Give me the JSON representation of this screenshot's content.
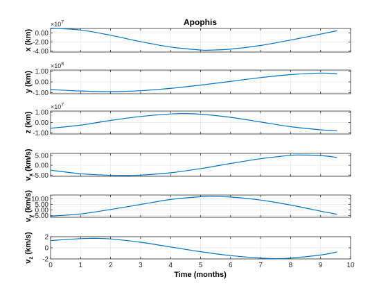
{
  "chart_data": {
    "type": "line",
    "title": "Apophis",
    "xlabel": "Time (months)",
    "xlim": [
      0,
      10
    ],
    "xticks": [
      "0",
      "1",
      "2",
      "3",
      "4",
      "5",
      "6",
      "7",
      "8",
      "9",
      "10"
    ],
    "x_end": 9.55,
    "line_color": "#0072BD",
    "grid_color": "#e6e6e6",
    "panels": [
      {
        "ylabel": "x (km)",
        "exponent_base": "×10",
        "exponent_power": "7",
        "ylim": [
          -4.2,
          1.0
        ],
        "yticks": [
          {
            "value": 0,
            "label": "0.00"
          },
          {
            "value": -2,
            "label": "-2.00"
          },
          {
            "value": -4,
            "label": "-4.00"
          }
        ],
        "points": [
          [
            0,
            1.08
          ],
          [
            1,
            0.65
          ],
          [
            2,
            -0.5
          ],
          [
            3,
            -1.9
          ],
          [
            4,
            -3.1
          ],
          [
            5,
            -3.75
          ],
          [
            5.3,
            -3.78
          ],
          [
            6,
            -3.55
          ],
          [
            7,
            -2.75
          ],
          [
            8,
            -1.55
          ],
          [
            9,
            -0.25
          ],
          [
            9.55,
            0.5
          ]
        ]
      },
      {
        "ylabel": "y (km)",
        "exponent_base": "×10",
        "exponent_power": "8",
        "ylim": [
          -1.1,
          1.1
        ],
        "yticks": [
          {
            "value": 1,
            "label": "1.00"
          },
          {
            "value": 0,
            "label": "0.00"
          },
          {
            "value": -1,
            "label": "-1.00"
          }
        ],
        "points": [
          [
            0,
            -0.72
          ],
          [
            1,
            -0.85
          ],
          [
            2,
            -0.9
          ],
          [
            3,
            -0.82
          ],
          [
            4,
            -0.6
          ],
          [
            5,
            -0.3
          ],
          [
            6,
            0.05
          ],
          [
            7,
            0.4
          ],
          [
            8,
            0.68
          ],
          [
            9,
            0.82
          ],
          [
            9.55,
            0.77
          ]
        ]
      },
      {
        "ylabel": "z (km)",
        "exponent_base": "×10",
        "exponent_power": "7",
        "ylim": [
          -1.1,
          1.1
        ],
        "yticks": [
          {
            "value": 1,
            "label": "1.00"
          },
          {
            "value": 0,
            "label": "0.00"
          },
          {
            "value": -1,
            "label": "-1.00"
          }
        ],
        "points": [
          [
            0,
            -0.55
          ],
          [
            1,
            -0.25
          ],
          [
            2,
            0.2
          ],
          [
            3,
            0.58
          ],
          [
            4,
            0.82
          ],
          [
            4.5,
            0.85
          ],
          [
            5,
            0.8
          ],
          [
            6,
            0.5
          ],
          [
            7,
            0.05
          ],
          [
            8,
            -0.4
          ],
          [
            9,
            -0.7
          ],
          [
            9.55,
            -0.8
          ]
        ]
      },
      {
        "ylabel_main": "v",
        "ylabel_sub": "x",
        "ylabel_unit": " (km/s)",
        "ylim": [
          -5.6,
          6.0
        ],
        "yticks": [
          {
            "value": 5,
            "label": "5.00"
          },
          {
            "value": 0,
            "label": "0.00"
          },
          {
            "value": -5,
            "label": "-5.00"
          }
        ],
        "points": [
          [
            0,
            -2.5
          ],
          [
            1,
            -4.3
          ],
          [
            2,
            -5.1
          ],
          [
            2.5,
            -5.2
          ],
          [
            3,
            -5.0
          ],
          [
            4,
            -3.8
          ],
          [
            5,
            -1.7
          ],
          [
            6,
            0.9
          ],
          [
            7,
            3.3
          ],
          [
            8,
            5.0
          ],
          [
            8.3,
            5.2
          ],
          [
            9,
            4.9
          ],
          [
            9.55,
            4.0
          ]
        ]
      },
      {
        "ylabel_main": "v",
        "ylabel_sub": "y",
        "ylabel_unit": " (km/s)",
        "ylim": [
          -6.5,
          13.5
        ],
        "yticks": [
          {
            "value": 10,
            "label": "10.00"
          },
          {
            "value": 5,
            "label": "5.00"
          },
          {
            "value": 0,
            "label": "0.00"
          },
          {
            "value": -5,
            "label": "-5.00"
          }
        ],
        "points": [
          [
            0,
            -5.5
          ],
          [
            1,
            -3.5
          ],
          [
            2,
            0.5
          ],
          [
            3,
            5.0
          ],
          [
            4,
            9.5
          ],
          [
            5,
            12.0
          ],
          [
            5.3,
            12.3
          ],
          [
            6,
            11.7
          ],
          [
            7,
            9.0
          ],
          [
            8,
            4.5
          ],
          [
            9,
            -1.0
          ],
          [
            9.55,
            -3.8
          ]
        ]
      },
      {
        "ylabel_main": "v",
        "ylabel_sub": "z",
        "ylabel_unit": " (km/s)",
        "ylim": [
          -2,
          2
        ],
        "yticks": [
          {
            "value": 2,
            "label": "2"
          },
          {
            "value": 0,
            "label": "0"
          },
          {
            "value": -2,
            "label": "-2"
          }
        ],
        "points": [
          [
            0,
            1.3
          ],
          [
            1,
            1.65
          ],
          [
            1.5,
            1.7
          ],
          [
            2,
            1.6
          ],
          [
            3,
            1.0
          ],
          [
            4,
            0.15
          ],
          [
            5,
            -0.7
          ],
          [
            6,
            -1.4
          ],
          [
            7,
            -1.85
          ],
          [
            7.5,
            -1.95
          ],
          [
            8,
            -1.85
          ],
          [
            9,
            -1.3
          ],
          [
            9.55,
            -0.75
          ]
        ]
      }
    ]
  }
}
